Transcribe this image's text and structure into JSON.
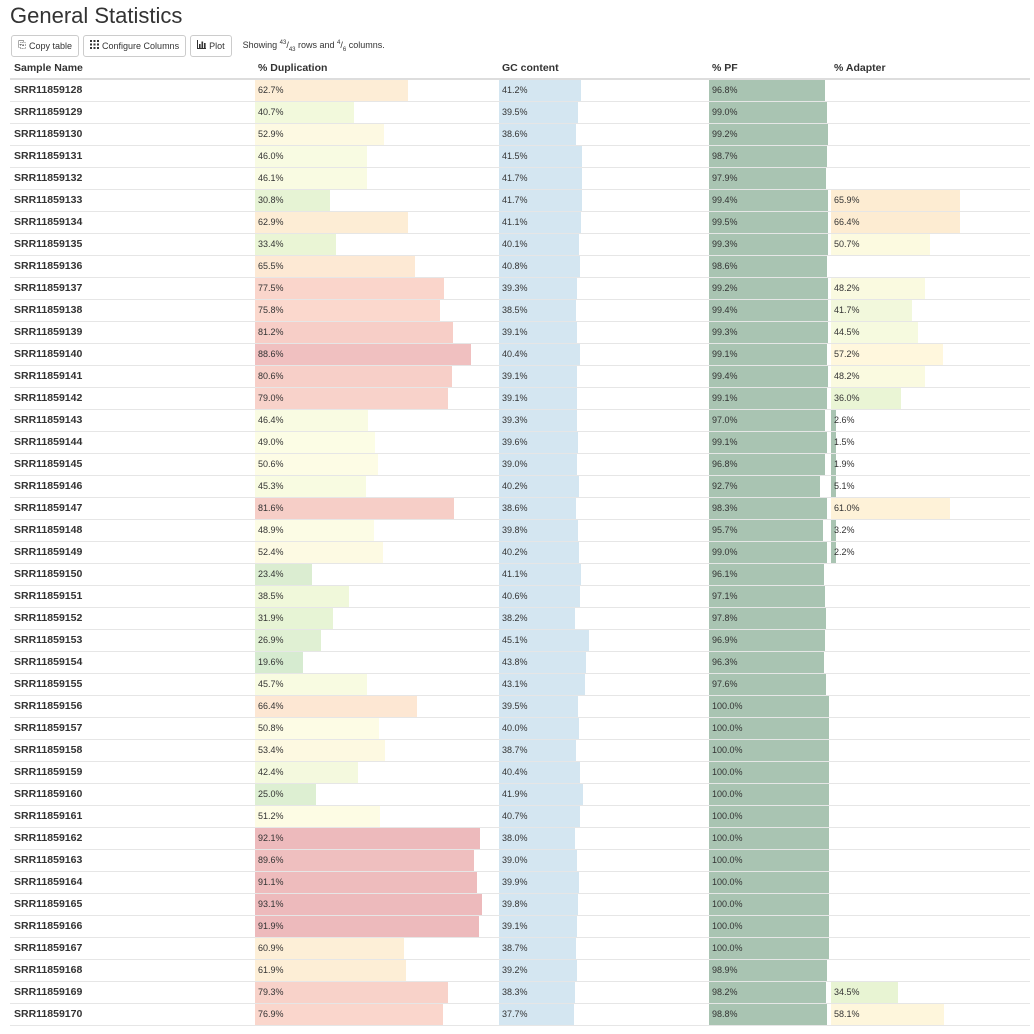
{
  "page": {
    "title": "General Statistics"
  },
  "toolbar": {
    "copy_label": "Copy table",
    "configure_label": "Configure Columns",
    "plot_label": "Plot",
    "showing_prefix": "Showing ",
    "rows_shown": "43",
    "rows_total": "43",
    "rows_word": " rows and ",
    "cols_shown": "4",
    "cols_total": "6",
    "cols_word": " columns."
  },
  "table": {
    "columns": [
      "Sample Name",
      "% Duplication",
      "GC content",
      "% PF",
      "% Adapter"
    ],
    "bar_colors": {
      "gc": "#d4e6f1",
      "pf": "#a9c4b2"
    },
    "rows": [
      {
        "sample": "SRR11859128",
        "dup": "62.7%",
        "gc": "41.2%",
        "pf": "96.8%",
        "adapter": ""
      },
      {
        "sample": "SRR11859129",
        "dup": "40.7%",
        "gc": "39.5%",
        "pf": "99.0%",
        "adapter": ""
      },
      {
        "sample": "SRR11859130",
        "dup": "52.9%",
        "gc": "38.6%",
        "pf": "99.2%",
        "adapter": ""
      },
      {
        "sample": "SRR11859131",
        "dup": "46.0%",
        "gc": "41.5%",
        "pf": "98.7%",
        "adapter": ""
      },
      {
        "sample": "SRR11859132",
        "dup": "46.1%",
        "gc": "41.7%",
        "pf": "97.9%",
        "adapter": ""
      },
      {
        "sample": "SRR11859133",
        "dup": "30.8%",
        "gc": "41.7%",
        "pf": "99.4%",
        "adapter": "65.9%"
      },
      {
        "sample": "SRR11859134",
        "dup": "62.9%",
        "gc": "41.1%",
        "pf": "99.5%",
        "adapter": "66.4%"
      },
      {
        "sample": "SRR11859135",
        "dup": "33.4%",
        "gc": "40.1%",
        "pf": "99.3%",
        "adapter": "50.7%"
      },
      {
        "sample": "SRR11859136",
        "dup": "65.5%",
        "gc": "40.8%",
        "pf": "98.6%",
        "adapter": ""
      },
      {
        "sample": "SRR11859137",
        "dup": "77.5%",
        "gc": "39.3%",
        "pf": "99.2%",
        "adapter": "48.2%"
      },
      {
        "sample": "SRR11859138",
        "dup": "75.8%",
        "gc": "38.5%",
        "pf": "99.4%",
        "adapter": "41.7%"
      },
      {
        "sample": "SRR11859139",
        "dup": "81.2%",
        "gc": "39.1%",
        "pf": "99.3%",
        "adapter": "44.5%"
      },
      {
        "sample": "SRR11859140",
        "dup": "88.6%",
        "gc": "40.4%",
        "pf": "99.1%",
        "adapter": "57.2%"
      },
      {
        "sample": "SRR11859141",
        "dup": "80.6%",
        "gc": "39.1%",
        "pf": "99.4%",
        "adapter": "48.2%"
      },
      {
        "sample": "SRR11859142",
        "dup": "79.0%",
        "gc": "39.1%",
        "pf": "99.1%",
        "adapter": "36.0%"
      },
      {
        "sample": "SRR11859143",
        "dup": "46.4%",
        "gc": "39.3%",
        "pf": "97.0%",
        "adapter": "2.6%"
      },
      {
        "sample": "SRR11859144",
        "dup": "49.0%",
        "gc": "39.6%",
        "pf": "99.1%",
        "adapter": "1.5%"
      },
      {
        "sample": "SRR11859145",
        "dup": "50.6%",
        "gc": "39.0%",
        "pf": "96.8%",
        "adapter": "1.9%"
      },
      {
        "sample": "SRR11859146",
        "dup": "45.3%",
        "gc": "40.2%",
        "pf": "92.7%",
        "adapter": "5.1%"
      },
      {
        "sample": "SRR11859147",
        "dup": "81.6%",
        "gc": "38.6%",
        "pf": "98.3%",
        "adapter": "61.0%"
      },
      {
        "sample": "SRR11859148",
        "dup": "48.9%",
        "gc": "39.8%",
        "pf": "95.7%",
        "adapter": "3.2%"
      },
      {
        "sample": "SRR11859149",
        "dup": "52.4%",
        "gc": "40.2%",
        "pf": "99.0%",
        "adapter": "2.2%"
      },
      {
        "sample": "SRR11859150",
        "dup": "23.4%",
        "gc": "41.1%",
        "pf": "96.1%",
        "adapter": ""
      },
      {
        "sample": "SRR11859151",
        "dup": "38.5%",
        "gc": "40.6%",
        "pf": "97.1%",
        "adapter": ""
      },
      {
        "sample": "SRR11859152",
        "dup": "31.9%",
        "gc": "38.2%",
        "pf": "97.8%",
        "adapter": ""
      },
      {
        "sample": "SRR11859153",
        "dup": "26.9%",
        "gc": "45.1%",
        "pf": "96.9%",
        "adapter": ""
      },
      {
        "sample": "SRR11859154",
        "dup": "19.6%",
        "gc": "43.8%",
        "pf": "96.3%",
        "adapter": ""
      },
      {
        "sample": "SRR11859155",
        "dup": "45.7%",
        "gc": "43.1%",
        "pf": "97.6%",
        "adapter": ""
      },
      {
        "sample": "SRR11859156",
        "dup": "66.4%",
        "gc": "39.5%",
        "pf": "100.0%",
        "adapter": ""
      },
      {
        "sample": "SRR11859157",
        "dup": "50.8%",
        "gc": "40.0%",
        "pf": "100.0%",
        "adapter": ""
      },
      {
        "sample": "SRR11859158",
        "dup": "53.4%",
        "gc": "38.7%",
        "pf": "100.0%",
        "adapter": ""
      },
      {
        "sample": "SRR11859159",
        "dup": "42.4%",
        "gc": "40.4%",
        "pf": "100.0%",
        "adapter": ""
      },
      {
        "sample": "SRR11859160",
        "dup": "25.0%",
        "gc": "41.9%",
        "pf": "100.0%",
        "adapter": ""
      },
      {
        "sample": "SRR11859161",
        "dup": "51.2%",
        "gc": "40.7%",
        "pf": "100.0%",
        "adapter": ""
      },
      {
        "sample": "SRR11859162",
        "dup": "92.1%",
        "gc": "38.0%",
        "pf": "100.0%",
        "adapter": ""
      },
      {
        "sample": "SRR11859163",
        "dup": "89.6%",
        "gc": "39.0%",
        "pf": "100.0%",
        "adapter": ""
      },
      {
        "sample": "SRR11859164",
        "dup": "91.1%",
        "gc": "39.9%",
        "pf": "100.0%",
        "adapter": ""
      },
      {
        "sample": "SRR11859165",
        "dup": "93.1%",
        "gc": "39.8%",
        "pf": "100.0%",
        "adapter": ""
      },
      {
        "sample": "SRR11859166",
        "dup": "91.9%",
        "gc": "39.1%",
        "pf": "100.0%",
        "adapter": ""
      },
      {
        "sample": "SRR11859167",
        "dup": "60.9%",
        "gc": "38.7%",
        "pf": "100.0%",
        "adapter": ""
      },
      {
        "sample": "SRR11859168",
        "dup": "61.9%",
        "gc": "39.2%",
        "pf": "98.9%",
        "adapter": ""
      },
      {
        "sample": "SRR11859169",
        "dup": "79.3%",
        "gc": "38.3%",
        "pf": "98.2%",
        "adapter": "34.5%"
      },
      {
        "sample": "SRR11859170",
        "dup": "76.9%",
        "gc": "37.7%",
        "pf": "98.8%",
        "adapter": "58.1%"
      }
    ]
  }
}
